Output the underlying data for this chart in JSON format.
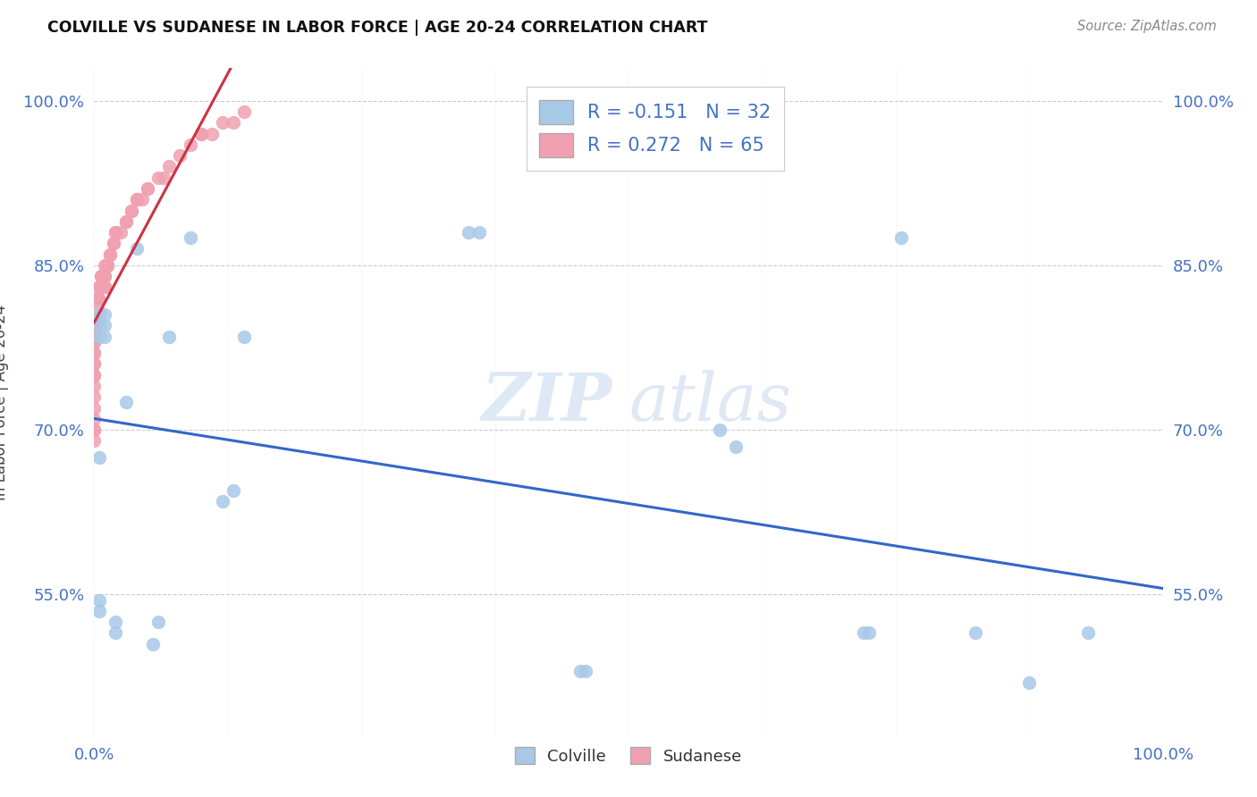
{
  "title": "COLVILLE VS SUDANESE IN LABOR FORCE | AGE 20-24 CORRELATION CHART",
  "source": "Source: ZipAtlas.com",
  "ylabel": "In Labor Force | Age 20-24",
  "x_range": [
    0.0,
    1.0
  ],
  "y_range": [
    0.42,
    1.03
  ],
  "colville_R": -0.151,
  "colville_N": 32,
  "sudanese_R": 0.272,
  "sudanese_N": 65,
  "colville_color": "#a8c8e8",
  "sudanese_color": "#f0a0b0",
  "colville_line_color": "#3366cc",
  "sudanese_line_color": "#cc3344",
  "legend_label1": "Colville",
  "legend_label2": "Sudanese",
  "watermark_zip": "ZIP",
  "watermark_atlas": "atlas",
  "yticks": [
    0.55,
    0.7,
    0.85,
    1.0
  ],
  "ytick_labels": [
    "55.0%",
    "70.0%",
    "85.0%",
    "100.0%"
  ],
  "xtick_positions": [
    0.0,
    1.0
  ],
  "xtick_labels": [
    "0.0%",
    "100.0%"
  ],
  "colville_x": [
    0.005,
    0.005,
    0.005,
    0.005,
    0.005,
    0.005,
    0.01,
    0.01,
    0.01,
    0.02,
    0.02,
    0.03,
    0.04,
    0.055,
    0.06,
    0.07,
    0.09,
    0.12,
    0.13,
    0.14,
    0.35,
    0.36,
    0.455,
    0.46,
    0.585,
    0.6,
    0.72,
    0.725,
    0.755,
    0.825,
    0.875,
    0.93
  ],
  "colville_y": [
    0.535,
    0.545,
    0.675,
    0.785,
    0.795,
    0.805,
    0.785,
    0.795,
    0.805,
    0.515,
    0.525,
    0.725,
    0.865,
    0.505,
    0.525,
    0.785,
    0.875,
    0.635,
    0.645,
    0.785,
    0.88,
    0.88,
    0.48,
    0.48,
    0.7,
    0.685,
    0.515,
    0.515,
    0.875,
    0.515,
    0.47,
    0.515
  ],
  "sudanese_x": [
    0.0,
    0.0,
    0.0,
    0.0,
    0.0,
    0.0,
    0.0,
    0.0,
    0.0,
    0.0,
    0.0,
    0.0,
    0.0,
    0.0,
    0.0,
    0.0,
    0.0,
    0.0,
    0.0,
    0.0,
    0.003,
    0.003,
    0.004,
    0.004,
    0.005,
    0.005,
    0.005,
    0.006,
    0.006,
    0.008,
    0.01,
    0.01,
    0.01,
    0.01,
    0.01,
    0.012,
    0.012,
    0.012,
    0.015,
    0.015,
    0.018,
    0.018,
    0.02,
    0.02,
    0.025,
    0.03,
    0.03,
    0.035,
    0.035,
    0.04,
    0.04,
    0.045,
    0.05,
    0.05,
    0.06,
    0.065,
    0.07,
    0.08,
    0.09,
    0.1,
    0.1,
    0.11,
    0.12,
    0.13,
    0.14
  ],
  "sudanese_y": [
    0.8,
    0.8,
    0.8,
    0.79,
    0.79,
    0.78,
    0.78,
    0.77,
    0.77,
    0.76,
    0.76,
    0.75,
    0.75,
    0.74,
    0.73,
    0.72,
    0.71,
    0.7,
    0.7,
    0.69,
    0.82,
    0.81,
    0.82,
    0.82,
    0.83,
    0.83,
    0.83,
    0.84,
    0.84,
    0.84,
    0.85,
    0.84,
    0.84,
    0.83,
    0.83,
    0.85,
    0.85,
    0.85,
    0.86,
    0.86,
    0.87,
    0.87,
    0.88,
    0.88,
    0.88,
    0.89,
    0.89,
    0.9,
    0.9,
    0.91,
    0.91,
    0.91,
    0.92,
    0.92,
    0.93,
    0.93,
    0.94,
    0.95,
    0.96,
    0.97,
    0.97,
    0.97,
    0.98,
    0.98,
    0.99
  ]
}
